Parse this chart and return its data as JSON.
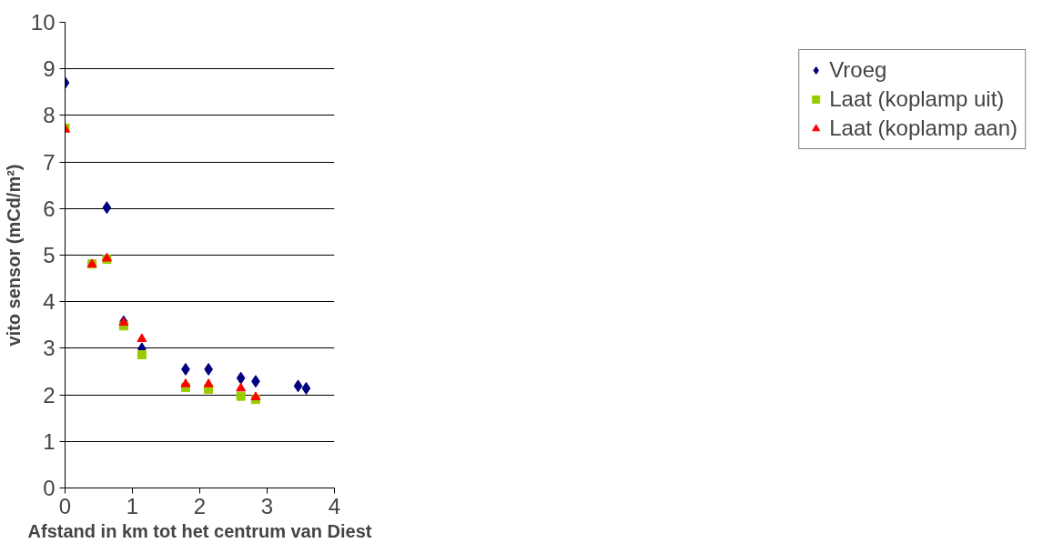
{
  "chart_data": {
    "type": "scatter",
    "xlabel": "Afstand in km tot het centrum van Diest",
    "ylabel": "vito sensor (mCd/m²)",
    "xlim": [
      0,
      4
    ],
    "xticks": [
      0,
      1,
      2,
      3,
      4
    ],
    "ylim": [
      0,
      10
    ],
    "yticks": [
      0,
      1,
      2,
      3,
      4,
      5,
      6,
      7,
      8,
      9,
      10
    ],
    "grid": "y",
    "legend": "right",
    "series": [
      {
        "name": "Vroeg",
        "color": "#000080",
        "marker": "diamond",
        "x": [
          0,
          0.62,
          0.87,
          1.14,
          1.79,
          2.13,
          2.61,
          2.83,
          3.46,
          3.58
        ],
        "values": [
          8.7,
          6.02,
          3.57,
          2.99,
          2.55,
          2.55,
          2.36,
          2.29,
          2.19,
          2.14
        ]
      },
      {
        "name": "Laat (koplamp uit)",
        "color": "#99cc00",
        "marker": "square",
        "x": [
          0,
          0.4,
          0.62,
          0.87,
          1.14,
          1.79,
          2.13,
          2.61,
          2.83
        ],
        "values": [
          7.73,
          4.81,
          4.91,
          3.48,
          2.86,
          2.16,
          2.12,
          1.97,
          1.9
        ]
      },
      {
        "name": "Laat (koplamp aan)",
        "color": "#ff0000",
        "marker": "triangle",
        "x": [
          0,
          0.4,
          0.62,
          0.87,
          1.14,
          1.79,
          2.13,
          2.61,
          2.83
        ],
        "values": [
          7.7,
          4.8,
          4.93,
          3.55,
          3.2,
          2.23,
          2.23,
          2.14,
          1.95
        ]
      }
    ]
  }
}
